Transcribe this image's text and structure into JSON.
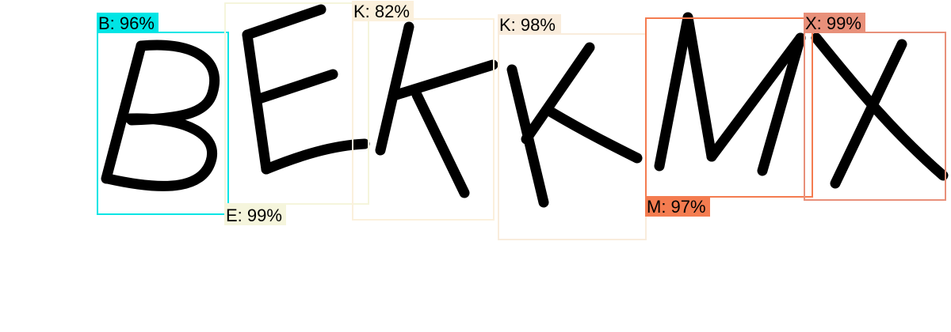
{
  "detections": [
    {
      "char": "B",
      "label": "B: 96%",
      "confidence": 0.96,
      "color": "#00e5e5"
    },
    {
      "char": "E",
      "label": "E: 99%",
      "confidence": 0.99,
      "color": "#f5f5dc"
    },
    {
      "char": "K",
      "label": "K: 82%",
      "confidence": 0.82,
      "color": "#fbf0dc"
    },
    {
      "char": "K",
      "label": "K: 98%",
      "confidence": 0.98,
      "color": "#f9ecdc"
    },
    {
      "char": "M",
      "label": "M: 97%",
      "confidence": 0.97,
      "color": "#f47c50"
    },
    {
      "char": "X",
      "label": "X: 99%",
      "confidence": 0.99,
      "color": "#e8907a"
    }
  ],
  "ink_color": "#000000"
}
